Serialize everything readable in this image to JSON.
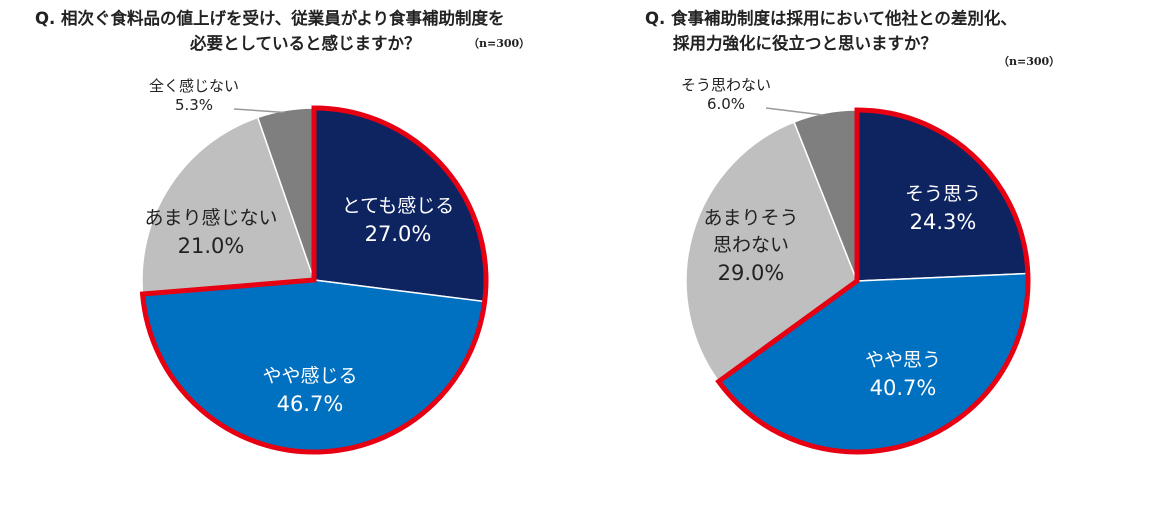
{
  "charts": [
    {
      "question_lines": [
        "Q. 相次ぐ食料品の値上げを受け、従業員がより食事補助制度を",
        "必要としていると感じますか？"
      ],
      "sample": "（n=300）"
    },
    {
      "question_lines": [
        "Q. 食事補助制度は採用において他社との差別化、",
        "採用力強化に役立つと思いますか？"
      ],
      "sample": "（n=300）"
    }
  ],
  "chart_data": [
    {
      "type": "pie",
      "title": "Q. 相次ぐ食料品の値上げを受け、従業員がより食事補助制度を必要としていると感じますか？",
      "n": "（n=300）",
      "start": "12 o'clock, clockwise",
      "highlight": "とても感じる + やや感じる (red outline)",
      "slices": [
        {
          "label": "とても感じる",
          "value": 27.0,
          "display": "27.0%",
          "color": "#0d2461",
          "text_color": "#ffffff"
        },
        {
          "label": "やや感じる",
          "value": 46.7,
          "display": "46.7%",
          "color": "#0070c0",
          "text_color": "#ffffff"
        },
        {
          "label": "あまり感じない",
          "value": 21.0,
          "display": "21.0%",
          "color": "#bfbfbf",
          "text_color": "#222222"
        },
        {
          "label": "全く感じない",
          "value": 5.3,
          "display": "5.3%",
          "color": "#7f7f7f",
          "text_color": "#222222"
        }
      ]
    },
    {
      "type": "pie",
      "title": "Q. 食事補助制度は採用において他社との差別化、採用力強化に役立つと思いますか？",
      "n": "（n=300）",
      "start": "12 o'clock, clockwise",
      "highlight": "そう思う + やや思う (red outline)",
      "slices": [
        {
          "label": "そう思う",
          "value": 24.3,
          "display": "24.3%",
          "color": "#0d2461",
          "text_color": "#ffffff"
        },
        {
          "label": "やや思う",
          "value": 40.7,
          "display": "40.7%",
          "color": "#0070c0",
          "text_color": "#ffffff"
        },
        {
          "label": "あまりそう思わない",
          "value": 29.0,
          "display": "29.0%",
          "color": "#bfbfbf",
          "text_color": "#222222"
        },
        {
          "label": "そう思わない",
          "value": 6.0,
          "display": "6.0%",
          "color": "#7f7f7f",
          "text_color": "#222222"
        }
      ]
    }
  ],
  "highlight_color": "#e60012"
}
